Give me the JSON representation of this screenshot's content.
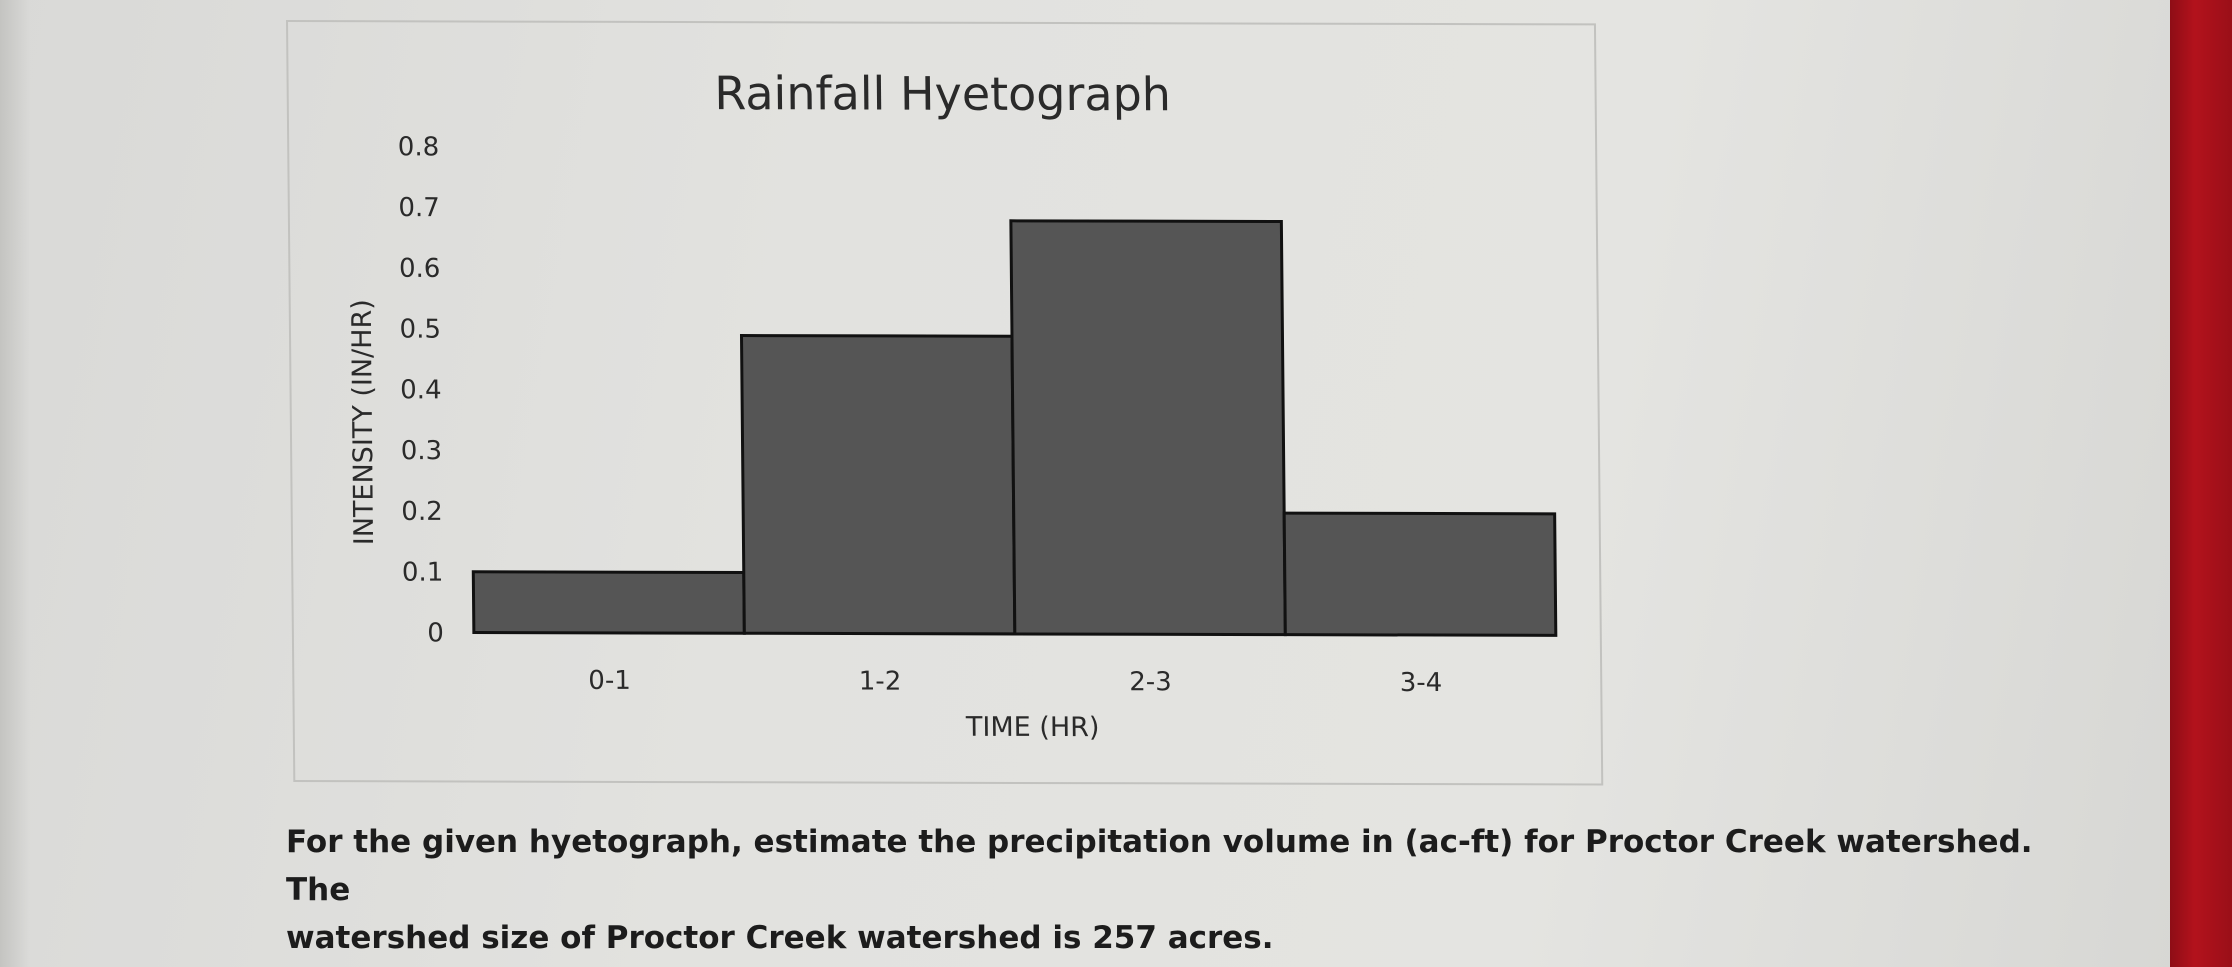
{
  "chart_data": {
    "type": "bar",
    "title": "Rainfall Hyetograph",
    "xlabel": "TIME (HR)",
    "ylabel": "INTENSITY (IN/HR)",
    "categories": [
      "0-1",
      "1-2",
      "2-3",
      "3-4"
    ],
    "values": [
      0.1,
      0.49,
      0.68,
      0.2
    ],
    "ylim": [
      0,
      0.8
    ],
    "yticks": [
      "0",
      "0.1",
      "0.2",
      "0.3",
      "0.4",
      "0.5",
      "0.6",
      "0.7",
      "0.8"
    ],
    "grid": false,
    "legend": "none",
    "bar_color": "#555555"
  },
  "question": {
    "line1": "For the given hyetograph, estimate the precipitation volume in (ac-ft) for Proctor Creek watershed. The",
    "line2": "watershed size of Proctor Creek watershed is 257 acres."
  }
}
